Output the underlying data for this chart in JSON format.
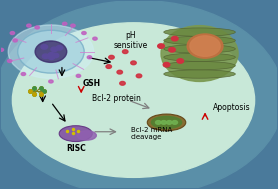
{
  "cell_bg": "#c8e8d8",
  "cell_border": "#4a7a9b",
  "cell_outer": "#5a8fa8",
  "nanoparticle_color": "#a8d4e0",
  "nanoparticle_border": "#7ab0c8",
  "inner_dots_color": "#5a4a9a",
  "scattered_dots_color": "#c060c0",
  "red_dots_color": "#d03040",
  "text_ph": "pH\nsensitive",
  "text_gsh": "GSH",
  "text_bcl2_protein": "Bcl-2 protein",
  "text_bcl2_mrna": "Bcl-2 mRNA\ncleavage",
  "text_risc": "RISC",
  "text_apoptosis": "Apoptosis",
  "background_outer": "#4a7a9b",
  "risc_color": "#8050a0",
  "risc_border": "#603080",
  "nucleus_color": "#7a9850",
  "nucleus_border": "#506030",
  "mito_outer_color": "#806020",
  "mito_inner_color": "#508030",
  "mito_dot_color": "#70b050",
  "chain_color": "#d080d0",
  "dna_color1": "#c0a000",
  "dna_color2": "#409040"
}
